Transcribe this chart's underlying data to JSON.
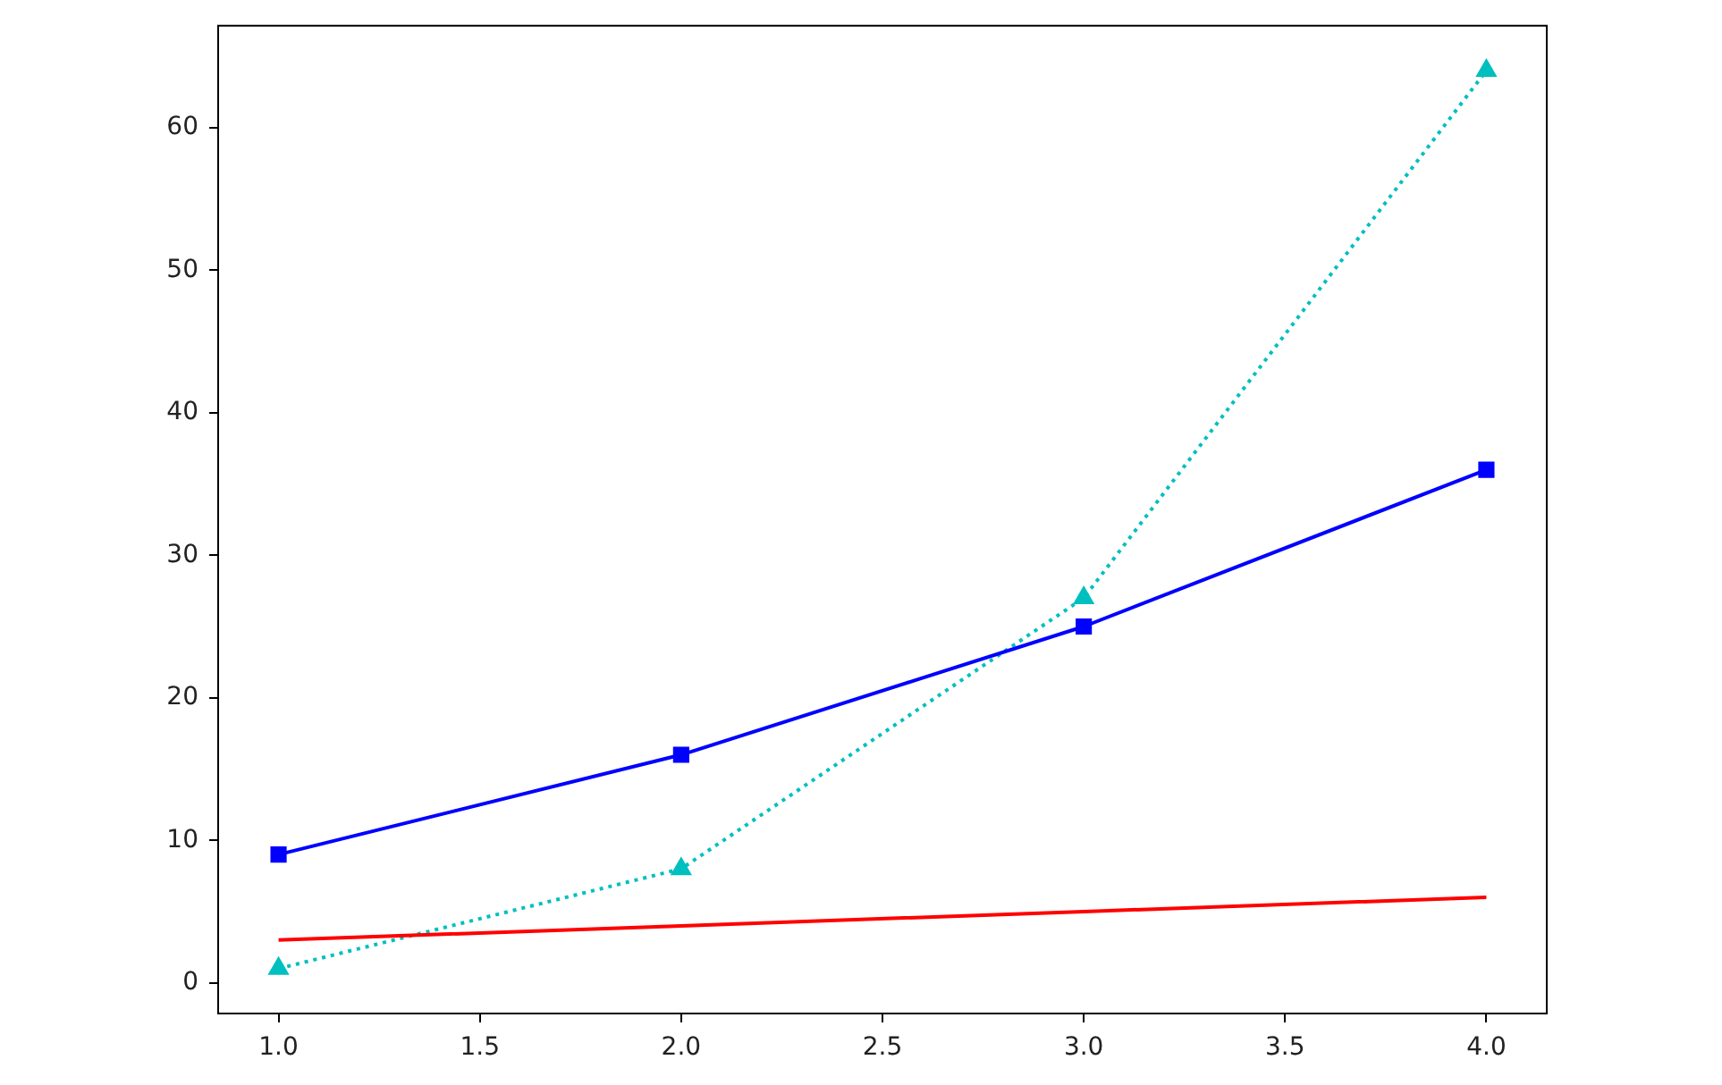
{
  "chart_data": {
    "type": "line",
    "x": [
      1,
      2,
      3,
      4
    ],
    "series": [
      {
        "color": "#ff0000",
        "values": [
          3,
          4,
          5,
          6
        ],
        "marker": "none",
        "line_style": "solid"
      },
      {
        "color": "#0000ff",
        "values": [
          9,
          16,
          25,
          36
        ],
        "marker": "square",
        "line_style": "solid"
      },
      {
        "color": "#00bfbf",
        "values": [
          1,
          8,
          27,
          64
        ],
        "marker": "triangle",
        "line_style": "dotted"
      }
    ],
    "xlim": [
      0.85,
      4.15
    ],
    "xticks": [
      {
        "value": 1,
        "label": "1.0"
      },
      {
        "value": 1.5,
        "label": "1.5"
      },
      {
        "value": 2,
        "label": "2.0"
      },
      {
        "value": 2.5,
        "label": "2.5"
      },
      {
        "value": 3,
        "label": "3.0"
      },
      {
        "value": 3.5,
        "label": "3.5"
      },
      {
        "value": 4,
        "label": "4.0"
      }
    ],
    "ylim": [
      -2.15,
      67.15
    ],
    "yticks": [
      0,
      10,
      20,
      30,
      40,
      50,
      60
    ],
    "grid": false,
    "legend": false
  }
}
